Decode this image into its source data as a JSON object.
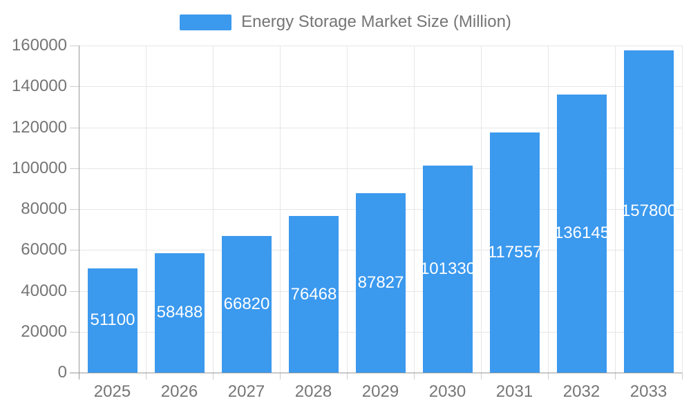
{
  "legend": {
    "label": "Energy Storage Market Size (Million)"
  },
  "colors": {
    "bar": "#3b99ee",
    "grid": "#e6e6e6",
    "axis_line": "#999999",
    "tick": "#cccccc",
    "axis_text": "#757575",
    "value_text": "#ffffff",
    "background": "#ffffff"
  },
  "chart_data": {
    "type": "bar",
    "title": "Energy Storage Market Size (Million)",
    "legend_entries": [
      "Energy Storage Market Size (Million)"
    ],
    "legend_position": "top-center",
    "categories": [
      "2025",
      "2026",
      "2027",
      "2028",
      "2029",
      "2030",
      "2031",
      "2032",
      "2033"
    ],
    "values": [
      51100,
      58488,
      66820,
      76468,
      87827,
      101330,
      117557,
      136145,
      157800
    ],
    "value_labels_shown": [
      "51100",
      "58488",
      "66820",
      "76468",
      "87827",
      "101330",
      "117557",
      "136145",
      "157800"
    ],
    "xlabel": "",
    "ylabel": "",
    "ylim": [
      0,
      160000
    ],
    "ytick_step": 20000,
    "yticks": [
      "0",
      "20000",
      "40000",
      "60000",
      "80000",
      "100000",
      "120000",
      "140000",
      "160000"
    ],
    "grid": true,
    "bar_color": "#3b99ee",
    "value_label_style": "white, centered inside bar"
  }
}
